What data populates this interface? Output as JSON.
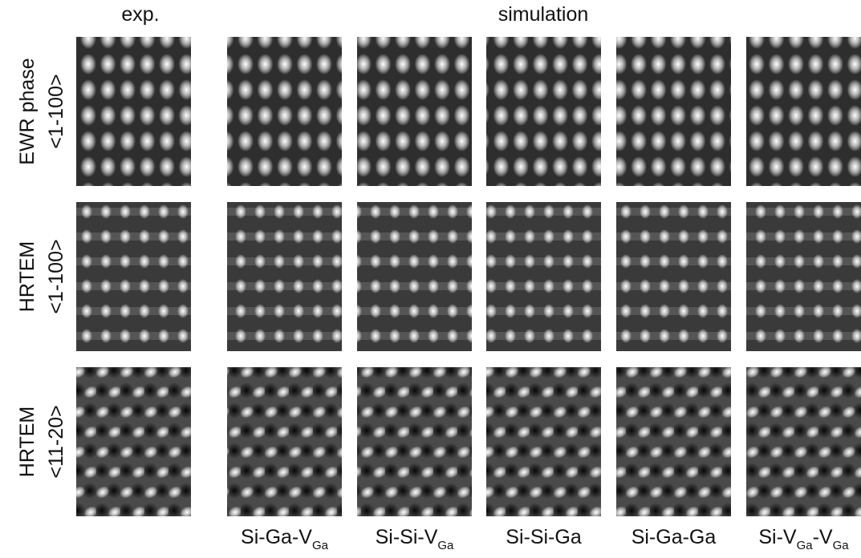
{
  "headers": {
    "experiment": "exp.",
    "simulation": "simulation"
  },
  "rows": [
    {
      "label": "EWR phase",
      "direction": "<1-100>"
    },
    {
      "label": "HRTEM",
      "direction": "<1-100>"
    },
    {
      "label": "HRTEM",
      "direction": "<11-20>"
    }
  ],
  "columns": [
    [
      {
        "text": "Si-Ga-V",
        "sub": "Ga"
      }
    ],
    [
      {
        "text": "Si-Si-V",
        "sub": "Ga"
      }
    ],
    [
      {
        "text": "Si-Si-Ga"
      }
    ],
    [
      {
        "text": "Si-Ga-Ga"
      }
    ],
    [
      {
        "text": "Si-V",
        "sub": "Ga"
      },
      {
        "text": "-V",
        "sub": "Ga"
      }
    ]
  ]
}
